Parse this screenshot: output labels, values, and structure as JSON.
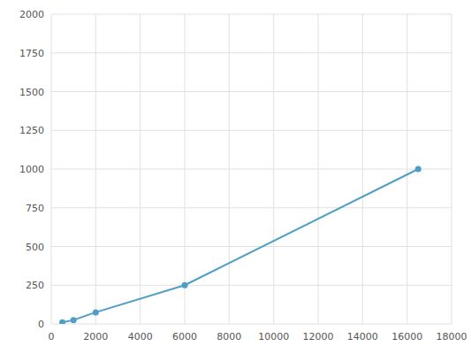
{
  "chart_data": {
    "type": "line",
    "x": [
      500,
      1000,
      2000,
      6000,
      16500
    ],
    "values": [
      10,
      25,
      75,
      250,
      1000
    ],
    "color": "#4e9ec6",
    "marker": "circle",
    "xlim": [
      0,
      18000
    ],
    "ylim": [
      0,
      2000
    ],
    "xticks": [
      0,
      2000,
      4000,
      6000,
      8000,
      10000,
      12000,
      14000,
      16000,
      18000
    ],
    "yticks": [
      0,
      250,
      500,
      750,
      1000,
      1250,
      1500,
      1750,
      2000
    ],
    "grid": true
  }
}
